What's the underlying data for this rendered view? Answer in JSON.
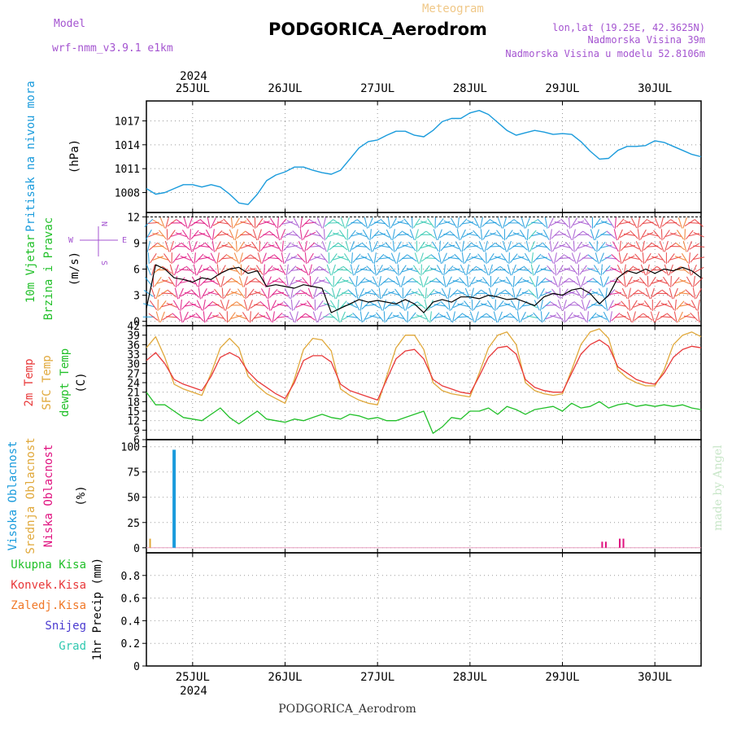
{
  "header": {
    "model_label": "Model",
    "model_name": "wrf-nmm_v3.9.1 e1km",
    "meteogram_label": "Meteogram",
    "station": "PODGORICA_Aerodrom",
    "lonlat": "lon,lat (19.25E, 42.3625N)",
    "elevation": "Nadmorska Visina 39m",
    "model_elevation": "Nadmorska Visina u modelu 52.8106m"
  },
  "footer_station": "PODGORICA_Aerodrom",
  "watermark": "made by Angel",
  "time_axis": {
    "year": "2024",
    "days": [
      "25JUL",
      "26JUL",
      "27JUL",
      "28JUL",
      "29JUL",
      "30JUL"
    ]
  },
  "colors": {
    "pressure": "#1a9bdc",
    "wind_speed": "#000000",
    "temp_2m": "#e8393a",
    "temp_sfc": "#e0a83a",
    "dewpoint": "#22c02a",
    "cloud_high": "#1a9bdc",
    "cloud_mid": "#e0a83a",
    "cloud_low": "#e0117f"
  },
  "chart_data": [
    {
      "type": "line",
      "panel": "pressure",
      "ylabel_lines": [
        "Pritisak na nivou mora",
        "(hPa)"
      ],
      "yticks": [
        1008,
        1011,
        1014,
        1017
      ],
      "ylim": [
        1005.5,
        1019.5
      ],
      "xlim": [
        24.5,
        30.5
      ],
      "grid": true,
      "series": [
        {
          "x": [
            24.5,
            24.6,
            24.7,
            24.8,
            24.9,
            25.0,
            25.1,
            25.2,
            25.3,
            25.4,
            25.5,
            25.6,
            25.7,
            25.8,
            25.9,
            26.0,
            26.1,
            26.2,
            26.3,
            26.4,
            26.5,
            26.6,
            26.7,
            26.8,
            26.9,
            27.0,
            27.1,
            27.2,
            27.3,
            27.4,
            27.5,
            27.6,
            27.7,
            27.8,
            27.9,
            28.0,
            28.1,
            28.2,
            28.3,
            28.4,
            28.5,
            28.6,
            28.7,
            28.8,
            28.9,
            29.0,
            29.1,
            29.2,
            29.3,
            29.4,
            29.5,
            29.6,
            29.7,
            29.8,
            29.9,
            30.0,
            30.1,
            30.2,
            30.3,
            30.4,
            30.5
          ],
          "values": [
            1008.5,
            1007.8,
            1008.0,
            1008.5,
            1009.0,
            1009.0,
            1008.7,
            1009.0,
            1008.7,
            1007.8,
            1006.7,
            1006.5,
            1007.8,
            1009.5,
            1010.2,
            1010.6,
            1011.2,
            1011.2,
            1010.8,
            1010.5,
            1010.3,
            1010.8,
            1012.2,
            1013.6,
            1014.4,
            1014.6,
            1015.2,
            1015.7,
            1015.7,
            1015.2,
            1015.0,
            1015.8,
            1016.9,
            1017.3,
            1017.3,
            1018.0,
            1018.3,
            1017.8,
            1016.8,
            1015.8,
            1015.2,
            1015.5,
            1015.8,
            1015.6,
            1015.3,
            1015.4,
            1015.3,
            1014.4,
            1013.2,
            1012.2,
            1012.3,
            1013.3,
            1013.8,
            1013.8,
            1013.9,
            1014.5,
            1014.3,
            1013.8,
            1013.3,
            1012.8,
            1012.5
          ]
        }
      ]
    },
    {
      "type": "line",
      "panel": "wind",
      "ylabel_lines": [
        "10m Vjetar",
        "Brzina i Pravac",
        "(m/s)"
      ],
      "yticks": [
        0,
        3,
        6,
        9,
        12
      ],
      "ylim": [
        -0.5,
        12.5
      ],
      "xlim": [
        24.5,
        30.5
      ],
      "grid": true,
      "direction_legend": [
        "N",
        "W",
        "E",
        "S"
      ],
      "series": [
        {
          "x": [
            24.5,
            24.6,
            24.7,
            24.8,
            24.9,
            25.0,
            25.1,
            25.2,
            25.3,
            25.4,
            25.5,
            25.6,
            25.7,
            25.8,
            25.9,
            26.0,
            26.1,
            26.2,
            26.3,
            26.4,
            26.5,
            26.6,
            26.7,
            26.8,
            26.9,
            27.0,
            27.1,
            27.2,
            27.3,
            27.4,
            27.5,
            27.6,
            27.7,
            27.8,
            27.9,
            28.0,
            28.1,
            28.2,
            28.3,
            28.4,
            28.5,
            28.6,
            28.7,
            28.8,
            28.9,
            29.0,
            29.1,
            29.2,
            29.3,
            29.4,
            29.5,
            29.6,
            29.7,
            29.8,
            29.9,
            30.0,
            30.1,
            30.2,
            30.3,
            30.4,
            30.5
          ],
          "values": [
            1.5,
            6.5,
            6.0,
            5.0,
            4.8,
            4.5,
            5.0,
            4.8,
            5.5,
            6.0,
            6.2,
            5.5,
            5.8,
            4.0,
            4.2,
            4.0,
            3.8,
            4.2,
            4.0,
            3.8,
            1.0,
            1.5,
            2.0,
            2.5,
            2.2,
            2.4,
            2.2,
            2.0,
            2.5,
            2.0,
            1.0,
            2.2,
            2.5,
            2.2,
            2.8,
            2.8,
            2.6,
            3.0,
            2.8,
            2.5,
            2.6,
            2.2,
            1.8,
            2.8,
            3.2,
            3.0,
            3.6,
            3.8,
            3.2,
            2.0,
            3.0,
            5.0,
            5.8,
            5.5,
            6.0,
            5.5,
            6.0,
            5.8,
            6.2,
            5.8,
            5.0
          ]
        }
      ]
    },
    {
      "type": "line",
      "panel": "temperature",
      "ylabel_lines": [
        "2m Temp",
        "SFC Temp",
        "dewpt Temp",
        "(C)"
      ],
      "yticks": [
        6,
        9,
        12,
        15,
        18,
        21,
        24,
        27,
        30,
        33,
        36,
        39,
        42
      ],
      "ylim": [
        6,
        42
      ],
      "xlim": [
        24.5,
        30.5
      ],
      "grid": true,
      "series": [
        {
          "name": "2m Temp",
          "x": [
            24.5,
            24.6,
            24.7,
            24.8,
            24.9,
            25.0,
            25.1,
            25.2,
            25.3,
            25.4,
            25.5,
            25.6,
            25.7,
            25.8,
            25.9,
            26.0,
            26.1,
            26.2,
            26.3,
            26.4,
            26.5,
            26.6,
            26.7,
            26.8,
            26.9,
            27.0,
            27.1,
            27.2,
            27.3,
            27.4,
            27.5,
            27.6,
            27.7,
            27.8,
            27.9,
            28.0,
            28.1,
            28.2,
            28.3,
            28.4,
            28.5,
            28.6,
            28.7,
            28.8,
            28.9,
            29.0,
            29.1,
            29.2,
            29.3,
            29.4,
            29.5,
            29.6,
            29.7,
            29.8,
            29.9,
            30.0,
            30.1,
            30.2,
            30.3,
            30.4,
            30.5
          ],
          "values": [
            31,
            33.5,
            30,
            25,
            23.5,
            22.5,
            21.5,
            26,
            32,
            33.5,
            32,
            27.5,
            24.5,
            22.5,
            20.5,
            19,
            24,
            31,
            32.5,
            32.5,
            30.5,
            23.5,
            21.5,
            20.5,
            19.5,
            18.5,
            25,
            31.5,
            34,
            34.5,
            31.5,
            25,
            23,
            22,
            21,
            20.5,
            26,
            32,
            35,
            35.5,
            33,
            25,
            22.5,
            21.5,
            21,
            21,
            27,
            33,
            36,
            37.5,
            35.5,
            29,
            27,
            25,
            24,
            23.5,
            27,
            32,
            34.5,
            35.5,
            35
          ]
        },
        {
          "name": "SFC Temp",
          "x": [
            24.5,
            24.6,
            24.7,
            24.8,
            24.9,
            25.0,
            25.1,
            25.2,
            25.3,
            25.4,
            25.5,
            25.6,
            25.7,
            25.8,
            25.9,
            26.0,
            26.1,
            26.2,
            26.3,
            26.4,
            26.5,
            26.6,
            26.7,
            26.8,
            26.9,
            27.0,
            27.1,
            27.2,
            27.3,
            27.4,
            27.5,
            27.6,
            27.7,
            27.8,
            27.9,
            28.0,
            28.1,
            28.2,
            28.3,
            28.4,
            28.5,
            28.6,
            28.7,
            28.8,
            28.9,
            29.0,
            29.1,
            29.2,
            29.3,
            29.4,
            29.5,
            29.6,
            29.7,
            29.8,
            29.9,
            30.0,
            30.1,
            30.2,
            30.3,
            30.4,
            30.5
          ],
          "values": [
            35,
            38.5,
            32,
            23.5,
            22,
            21,
            20,
            27,
            35,
            38,
            35,
            26,
            23,
            20.5,
            19,
            17.5,
            25,
            34.5,
            38,
            37.5,
            34,
            22,
            20,
            18.5,
            17.5,
            17,
            26,
            35,
            39,
            39,
            34.5,
            24,
            21.5,
            20.5,
            20,
            19.5,
            27,
            35,
            39,
            40,
            36,
            24,
            21.5,
            20.5,
            20,
            20.5,
            28,
            36,
            40,
            41,
            38,
            28,
            25.5,
            24,
            23,
            23,
            28,
            36,
            39,
            40,
            38.5
          ]
        },
        {
          "name": "dewpt Temp",
          "x": [
            24.5,
            24.6,
            24.7,
            24.8,
            24.9,
            25.0,
            25.1,
            25.2,
            25.3,
            25.4,
            25.5,
            25.6,
            25.7,
            25.8,
            25.9,
            26.0,
            26.1,
            26.2,
            26.3,
            26.4,
            26.5,
            26.6,
            26.7,
            26.8,
            26.9,
            27.0,
            27.1,
            27.2,
            27.3,
            27.4,
            27.5,
            27.6,
            27.7,
            27.8,
            27.9,
            28.0,
            28.1,
            28.2,
            28.3,
            28.4,
            28.5,
            28.6,
            28.7,
            28.8,
            28.9,
            29.0,
            29.1,
            29.2,
            29.3,
            29.4,
            29.5,
            29.6,
            29.7,
            29.8,
            29.9,
            30.0,
            30.1,
            30.2,
            30.3,
            30.4,
            30.5
          ],
          "values": [
            21,
            17,
            17,
            15,
            13,
            12.5,
            12,
            14,
            16,
            13,
            11,
            13,
            15,
            12.5,
            12,
            11.5,
            12.5,
            12,
            13,
            14,
            13,
            12.5,
            14,
            13.5,
            12.5,
            13,
            12,
            12,
            13,
            14,
            15,
            8,
            10,
            13,
            12.5,
            15,
            15,
            16,
            14,
            16.5,
            15.5,
            14,
            15.5,
            16,
            16.5,
            15,
            17.5,
            16,
            16.5,
            18,
            16,
            17,
            17.5,
            16.5,
            17,
            16.5,
            17,
            16.5,
            17,
            16,
            15.5
          ]
        }
      ]
    },
    {
      "type": "bar",
      "panel": "cloud",
      "ylabel_lines": [
        "Visoka Oblacnost",
        "Srednja Oblacnost",
        "Niska Oblacnost",
        "(%)"
      ],
      "yticks": [
        0,
        25,
        50,
        75,
        100
      ],
      "ylim": [
        -5,
        107
      ],
      "xlim": [
        24.5,
        30.5
      ],
      "grid": true,
      "series": [
        {
          "name": "Visoka Oblacnost",
          "x": [
            24.8
          ],
          "values": [
            97
          ]
        },
        {
          "name": "Srednja Oblacnost",
          "x": [
            24.54
          ],
          "values": [
            9
          ]
        },
        {
          "name": "Niska Oblacnost",
          "x": [
            29.43,
            29.47,
            29.62,
            29.66
          ],
          "values": [
            6,
            6,
            9,
            9
          ]
        }
      ]
    },
    {
      "type": "bar",
      "panel": "precip",
      "ylabel_lines": [
        "1hr Precip (mm)"
      ],
      "legend": [
        "Ukupna Kisa",
        "Konvek.Kisa",
        "Zaledj.Kisa",
        "Snijeg",
        "Grad"
      ],
      "legend_colors": [
        "#22c02a",
        "#e8393a",
        "#f07828",
        "#4a3ad0",
        "#30c8b0"
      ],
      "yticks": [
        0,
        0.2,
        0.4,
        0.6,
        0.8
      ],
      "ylim": [
        0,
        1.0
      ],
      "xlim": [
        24.5,
        30.5
      ],
      "grid": true,
      "series": []
    }
  ]
}
